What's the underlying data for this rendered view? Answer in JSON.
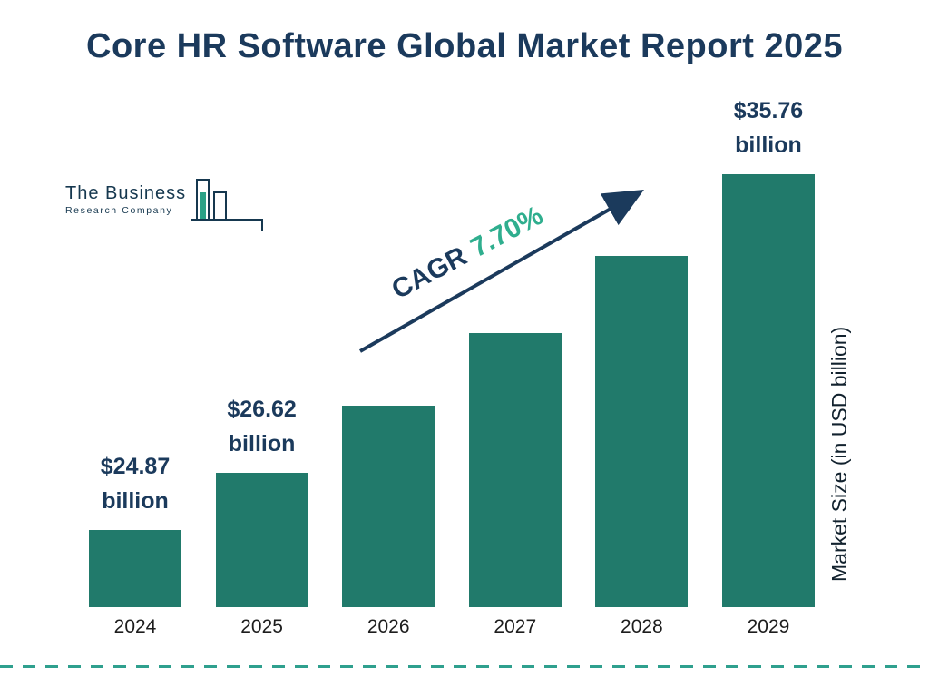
{
  "title": "Core HR Software Global Market Report 2025",
  "logo": {
    "line1": "The Business",
    "line2": "Research Company"
  },
  "cagr": {
    "prefix": "CAGR",
    "value": "7.70%"
  },
  "y_axis_label": "Market Size (in USD billion)",
  "colors": {
    "bar": "#217a6b",
    "title": "#1b3a5c",
    "cagr_value": "#2fae8e",
    "arrow": "#1b3a5c",
    "dashed_line": "#2fa08e"
  },
  "chart_data": {
    "type": "bar",
    "title": "Core HR Software Global Market Report 2025",
    "categories": [
      "2024",
      "2025",
      "2026",
      "2027",
      "2028",
      "2029"
    ],
    "values": [
      24.87,
      26.62,
      28.67,
      30.88,
      33.26,
      35.76
    ],
    "bar_labels": [
      {
        "amount": "$24.87",
        "unit": "billion"
      },
      {
        "amount": "$26.62",
        "unit": "billion"
      },
      null,
      null,
      null,
      {
        "amount": "$35.76",
        "unit": "billion"
      }
    ],
    "xlabel": "",
    "ylabel": "Market Size (in USD billion)",
    "cagr": "7.70%",
    "legend": false,
    "grid": false
  }
}
